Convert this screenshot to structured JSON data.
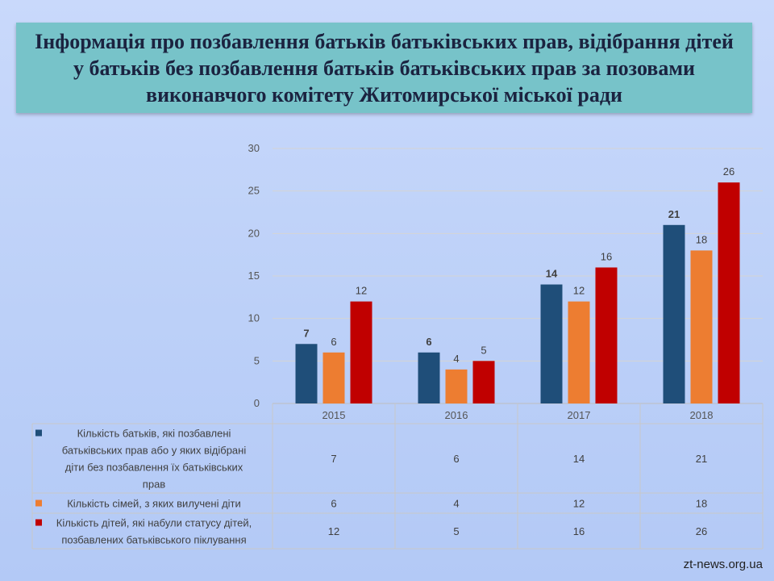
{
  "title_lines": [
    "Інформація про позбавлення батьків батьківських прав, відібрання дітей",
    "у батьків без позбавлення батьків батьківських прав за позовами",
    "виконавчого комітету Житомирської міської ради"
  ],
  "chart_data": {
    "type": "bar",
    "title": "Інформація про позбавлення батьків батьківських прав, відібрання дітей у батьків без позбавлення батьків батьківських прав за позовами виконавчого комітету Житомирської міської ради",
    "categories": [
      "2015",
      "2016",
      "2017",
      "2018"
    ],
    "ylim": [
      0,
      30
    ],
    "yticks": [
      0,
      5,
      10,
      15,
      20,
      25,
      30
    ],
    "grid": true,
    "legend": "data-table-below",
    "series": [
      {
        "name": "Кількість батьків, які позбавлені батьківських прав або у яких відібрані діти без позбавлення їх батьківських прав",
        "name_lines": [
          "Кількість батьків, які позбавлені",
          "батьківських прав або у яких відібрані",
          "діти без позбавлення їх батьківських",
          "прав"
        ],
        "color": "#1f4e79",
        "label_bold": true,
        "values": [
          7,
          6,
          14,
          21
        ]
      },
      {
        "name": "Кількість сімей, з яких вилучені діти",
        "name_lines": [
          "Кількість сімей, з яких вилучені діти"
        ],
        "color": "#ed7d31",
        "label_bold": false,
        "values": [
          6,
          4,
          12,
          18
        ]
      },
      {
        "name": "Кількість дітей, які набули статусу дітей, позбавлених батьківського піклування",
        "name_lines": [
          "Кількість дітей, які набули статусу дітей,",
          "позбавлених батьківського піклування"
        ],
        "color": "#c00000",
        "label_bold": false,
        "values": [
          12,
          5,
          16,
          26
        ]
      }
    ]
  },
  "watermark": "zt-news.org.ua"
}
